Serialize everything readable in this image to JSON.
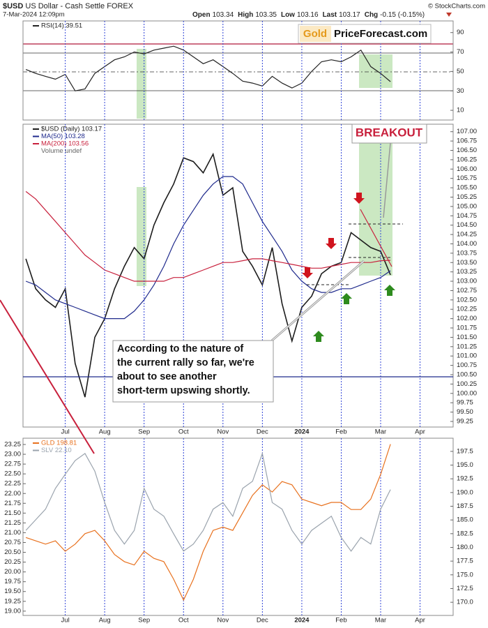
{
  "header": {
    "symbol": "$USD",
    "name": "US Dollar - Cash Settle",
    "exchange": "FOREX",
    "timestamp": "7-Mar-2024 12:09pm",
    "copyright": "© StockCharts.com",
    "quote": [
      {
        "label": "Open",
        "value": "103.34"
      },
      {
        "label": "High",
        "value": "103.35"
      },
      {
        "label": "Low",
        "value": "103.16"
      },
      {
        "label": "Last",
        "value": "103.17"
      },
      {
        "label": "Chg",
        "value": "-0.15 (-0.15%)"
      }
    ]
  },
  "logo": {
    "gold": "Gold",
    "site": "PriceForecast.com"
  },
  "annotations": {
    "breakout": "BREAKOUT",
    "note": [
      "According to the nature of",
      "the current rally so far, we're",
      "about to see another",
      "short-term upswing shortly."
    ]
  },
  "chart_data": [
    {
      "type": "line",
      "categories": [
        null,
        null,
        null,
        null,
        null,
        null,
        null,
        null,
        null,
        null,
        null,
        null,
        null,
        null,
        null,
        null,
        null,
        null,
        null,
        null,
        null,
        null,
        null,
        null,
        null,
        null,
        null,
        null,
        null,
        null,
        null,
        null,
        null,
        null,
        null,
        null,
        null,
        null,
        null,
        null,
        null,
        null,
        null,
        null
      ],
      "series": [
        {
          "name": "RSI(14) 39.51",
          "color": "#222222",
          "values": [
            52,
            48,
            45,
            42,
            47,
            30,
            32,
            48,
            55,
            62,
            65,
            70,
            68,
            72,
            74,
            76,
            72,
            65,
            58,
            62,
            55,
            48,
            40,
            38,
            35,
            45,
            38,
            33,
            38,
            50,
            60,
            62,
            60,
            65,
            72,
            55,
            48,
            39.51,
            null,
            null,
            null,
            null,
            null,
            null
          ]
        }
      ],
      "ylim": [
        0,
        102
      ],
      "yticks": [
        90,
        70,
        50,
        30,
        10
      ]
    },
    {
      "type": "line",
      "categories": [
        null,
        null,
        null,
        null,
        "Jul",
        null,
        null,
        null,
        "Aug",
        null,
        null,
        null,
        "Sep",
        null,
        null,
        null,
        "Oct",
        null,
        null,
        null,
        "Nov",
        null,
        null,
        null,
        "Dec",
        null,
        null,
        null,
        "2024",
        null,
        null,
        null,
        "Feb",
        null,
        null,
        null,
        "Mar",
        null,
        null,
        null,
        "Apr",
        null,
        null,
        null
      ],
      "series": [
        {
          "name": "$USD (Daily) 103.17",
          "color": "#1c1c1c",
          "values": [
            103.6,
            102.8,
            102.5,
            102.3,
            102.8,
            100.8,
            99.9,
            101.5,
            102.0,
            102.8,
            103.4,
            103.9,
            103.6,
            104.5,
            105.1,
            105.6,
            106.3,
            106.2,
            105.9,
            106.4,
            105.3,
            105.5,
            103.8,
            103.4,
            102.9,
            103.9,
            102.4,
            101.4,
            102.3,
            102.6,
            103.2,
            103.4,
            103.5,
            104.3,
            104.1,
            103.9,
            103.8,
            103.17,
            null,
            null,
            null,
            null,
            null,
            null
          ]
        },
        {
          "name": "MA(50) 103.28",
          "color": "#1f2a8c",
          "values": [
            103.0,
            102.9,
            102.7,
            102.5,
            102.4,
            102.3,
            102.2,
            102.1,
            102.0,
            102.0,
            102.0,
            102.2,
            102.5,
            102.9,
            103.4,
            104.0,
            104.5,
            104.9,
            105.3,
            105.6,
            105.8,
            105.8,
            105.6,
            105.1,
            104.6,
            104.2,
            103.8,
            103.3,
            103.0,
            102.8,
            102.7,
            102.7,
            102.8,
            102.8,
            102.9,
            103.0,
            103.1,
            103.28,
            null,
            null,
            null,
            null,
            null,
            null
          ]
        },
        {
          "name": "MA(200) 103.56",
          "color": "#c8203c",
          "values": [
            105.4,
            105.2,
            104.9,
            104.6,
            104.3,
            104.0,
            103.7,
            103.5,
            103.3,
            103.2,
            103.1,
            103.0,
            103.0,
            103.0,
            103.0,
            103.1,
            103.1,
            103.2,
            103.3,
            103.4,
            103.5,
            103.5,
            103.55,
            103.6,
            103.6,
            103.55,
            103.5,
            103.45,
            103.4,
            103.35,
            103.35,
            103.4,
            103.45,
            103.5,
            103.5,
            103.5,
            103.55,
            103.56,
            null,
            null,
            null,
            null,
            null,
            null
          ]
        }
      ],
      "legend_note": "Volume undef",
      "ylim": [
        99.1,
        107.2
      ],
      "yticks": [
        {
          "value": 107,
          "label": "107.00"
        },
        106.75,
        {
          "value": 106.5,
          "label": "106.50"
        },
        106.25,
        {
          "value": 106,
          "label": "106.00"
        },
        105.75,
        {
          "value": 105.5,
          "label": "105.50"
        },
        105.25,
        {
          "value": 105,
          "label": "105.00"
        },
        104.75,
        {
          "value": 104.5,
          "label": "104.50"
        },
        104.25,
        {
          "value": 104,
          "label": "104.00"
        },
        103.75,
        {
          "value": 103.5,
          "label": "103.50"
        },
        103.25,
        {
          "value": 103,
          "label": "103.00"
        },
        102.75,
        {
          "value": 102.5,
          "label": "102.50"
        },
        102.25,
        {
          "value": 102,
          "label": "102.00"
        },
        101.75,
        {
          "value": 101.5,
          "label": "101.50"
        },
        101.25,
        {
          "value": 101,
          "label": "101.00"
        },
        100.75,
        {
          "value": 100.5,
          "label": "100.50"
        },
        100.25,
        {
          "value": 100,
          "label": "100.00"
        },
        99.75,
        {
          "value": 99.5,
          "label": "99.50"
        },
        99.25
      ]
    },
    {
      "type": "line",
      "categories": [
        null,
        null,
        null,
        null,
        "Jul",
        null,
        null,
        null,
        "Aug",
        null,
        null,
        null,
        "Sep",
        null,
        null,
        null,
        "Oct",
        null,
        null,
        null,
        "Nov",
        null,
        null,
        null,
        "Dec",
        null,
        null,
        null,
        "2024",
        null,
        null,
        null,
        "Feb",
        null,
        null,
        null,
        "Mar",
        null,
        null,
        null,
        "Apr",
        null,
        null,
        null
      ],
      "series": [
        {
          "name": "GLD 198.81",
          "color": "#e8711e",
          "axis": "y2",
          "values": [
            181.8,
            181.2,
            180.6,
            181.2,
            179.3,
            180.6,
            182.5,
            183.1,
            181.2,
            178.7,
            177.4,
            176.8,
            179.3,
            178.0,
            177.4,
            174.2,
            170.4,
            174.2,
            179.3,
            183.1,
            183.7,
            183.1,
            186.3,
            189.5,
            191.4,
            190.1,
            192.0,
            191.4,
            188.8,
            188.2,
            187.6,
            188.2,
            188.2,
            186.9,
            186.9,
            188.8,
            193.3,
            198.81,
            null,
            null,
            null,
            null,
            null,
            null
          ]
        },
        {
          "name": "SLV 22.10",
          "color": "#9aa3ad",
          "values": [
            21.06,
            21.33,
            21.6,
            22.13,
            22.49,
            22.84,
            23.02,
            22.57,
            21.77,
            21.06,
            20.71,
            21.06,
            22.13,
            21.6,
            21.42,
            20.97,
            20.53,
            20.71,
            21.06,
            21.6,
            21.77,
            21.42,
            22.13,
            22.31,
            23.02,
            21.77,
            21.6,
            21.06,
            20.71,
            21.06,
            21.24,
            21.42,
            20.88,
            20.53,
            20.88,
            20.71,
            21.6,
            22.1,
            null,
            null,
            null,
            null,
            null,
            null
          ]
        }
      ],
      "ylim": [
        18.89,
        23.41
      ],
      "yticks": [
        23.25,
        {
          "value": 23,
          "label": "23.00"
        },
        22.75,
        {
          "value": 22.5,
          "label": "22.50"
        },
        22.25,
        {
          "value": 22,
          "label": "22.00"
        },
        21.75,
        {
          "value": 21.5,
          "label": "21.50"
        },
        21.25,
        {
          "value": 21,
          "label": "21.00"
        },
        20.75,
        {
          "value": 20.5,
          "label": "20.50"
        },
        20.25,
        {
          "value": 20,
          "label": "20.00"
        },
        19.75,
        {
          "value": 19.5,
          "label": "19.50"
        },
        19.25,
        {
          "value": 19,
          "label": "19.00"
        }
      ],
      "y2lim": [
        167.6,
        199.9
      ],
      "y2ticks": [
        197.5,
        {
          "value": 195,
          "label": "195.0"
        },
        192.5,
        {
          "value": 190,
          "label": "190.0"
        },
        187.5,
        {
          "value": 185,
          "label": "185.0"
        },
        182.5,
        {
          "value": 180,
          "label": "180.0"
        },
        177.5,
        {
          "value": 175,
          "label": "175.0"
        },
        172.5,
        {
          "value": 170,
          "label": "170.0"
        }
      ]
    }
  ]
}
